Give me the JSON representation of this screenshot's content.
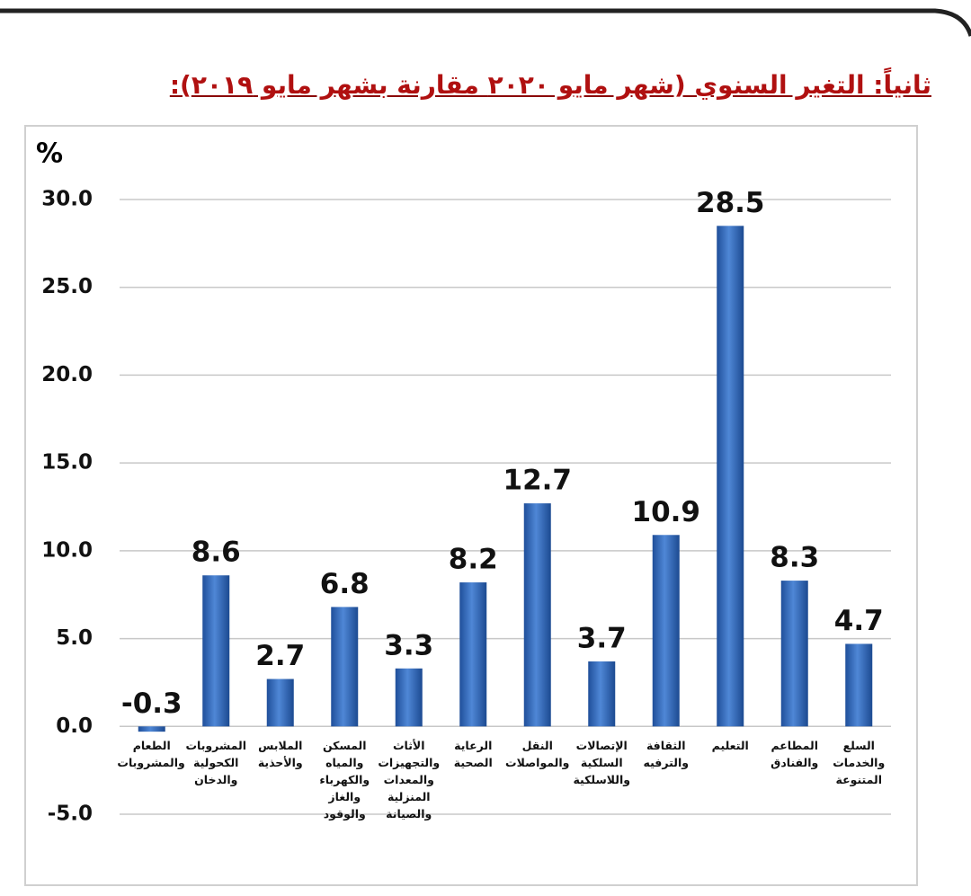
{
  "chart_data": {
    "type": "bar",
    "title": "ثانياً: التغير السنوي (شهر مايو ٢٠٢٠ مقارنة بشهر مايو ٢٠١٩):",
    "y_label": "%",
    "categories": [
      "الطعام والمشروبات",
      "المشروبات الكحولية والدخان",
      "الملابس والأحذية",
      "المسكن والمياه والكهرباء والغاز والوقود",
      "الأثاث والتجهيزات والمعدات المنزلية والصيانة",
      "الرعاية الصحية",
      "النقل والمواصلات",
      "الإتصالات السلكية واللاسلكية",
      "الثقافة والترفيه",
      "التعليم",
      "المطاعم والفنادق",
      "السلع والخدمات المتنوعة"
    ],
    "values": [
      -0.3,
      8.6,
      2.7,
      6.8,
      3.3,
      8.2,
      12.7,
      3.7,
      10.9,
      28.5,
      8.3,
      4.7
    ],
    "color": "#3a70c0",
    "ylim": [
      -5,
      30
    ],
    "yticks": [
      {
        "value": -5,
        "label": "-5.0"
      },
      {
        "value": 0,
        "label": "0.0"
      },
      {
        "value": 5,
        "label": "5.0"
      },
      {
        "value": 10,
        "label": "10.0"
      },
      {
        "value": 15,
        "label": "15.0"
      },
      {
        "value": 20,
        "label": "20.0"
      },
      {
        "value": 25,
        "label": "25.0"
      },
      {
        "value": 30,
        "label": "30.0"
      }
    ],
    "grid": true
  }
}
